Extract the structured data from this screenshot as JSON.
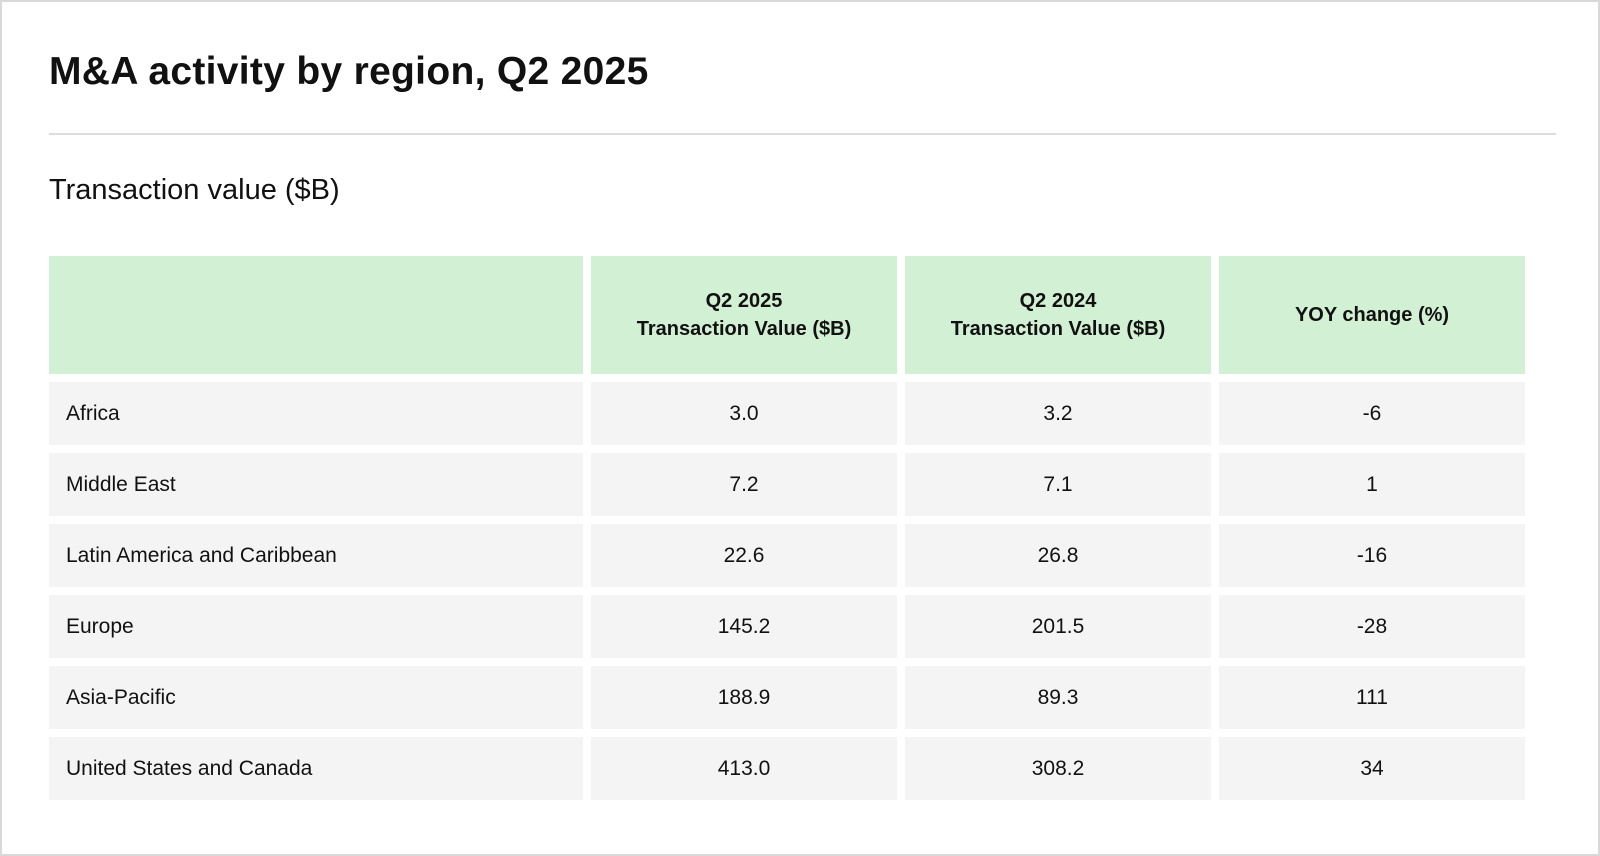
{
  "title": "M&A activity by region, Q2 2025",
  "subtitle": "Transaction value ($B)",
  "chart_data": {
    "type": "table",
    "title": "M&A activity by region, Q2 2025",
    "subtitle": "Transaction value ($B)",
    "columns": [
      {
        "key": "region",
        "line1": "",
        "line2": ""
      },
      {
        "key": "q2_2025",
        "line1": "Q2 2025",
        "line2": "Transaction Value ($B)"
      },
      {
        "key": "q2_2024",
        "line1": "Q2 2024",
        "line2": "Transaction Value ($B)"
      },
      {
        "key": "yoy",
        "line1": "YOY change (%)",
        "line2": ""
      }
    ],
    "rows": [
      {
        "region": "Africa",
        "q2_2025": "3.0",
        "q2_2024": "3.2",
        "yoy": "-6"
      },
      {
        "region": "Middle East",
        "q2_2025": "7.2",
        "q2_2024": "7.1",
        "yoy": "1"
      },
      {
        "region": "Latin America and Caribbean",
        "q2_2025": "22.6",
        "q2_2024": "26.8",
        "yoy": "-16"
      },
      {
        "region": "Europe",
        "q2_2025": "145.2",
        "q2_2024": "201.5",
        "yoy": "-28"
      },
      {
        "region": "Asia-Pacific",
        "q2_2025": "188.9",
        "q2_2024": "89.3",
        "yoy": "111"
      },
      {
        "region": "United States and Canada",
        "q2_2025": "413.0",
        "q2_2024": "308.2",
        "yoy": "34"
      }
    ]
  },
  "colors": {
    "header_fill": "#d2f0d4",
    "row_fill": "#f4f4f4",
    "divider": "#dddddd",
    "border": "#d9d9d9"
  }
}
